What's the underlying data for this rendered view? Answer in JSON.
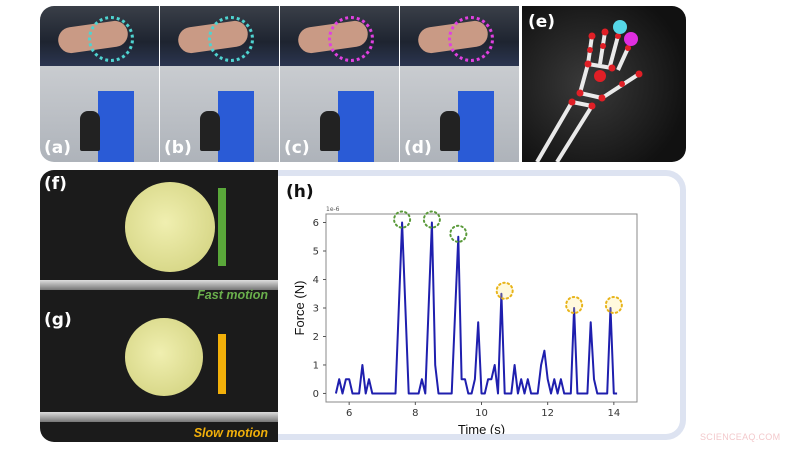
{
  "figure": {
    "panels": {
      "a": {
        "label": "(a)",
        "marker_color": "#4fd3d0"
      },
      "b": {
        "label": "(b)",
        "marker_color": "#4fd3d0"
      },
      "c": {
        "label": "(c)",
        "marker_color": "#e040e0"
      },
      "d": {
        "label": "(d)",
        "marker_color": "#e040e0"
      },
      "e": {
        "label": "(e)",
        "markers": [
          "#55d6e6",
          "#e02ee0",
          "#e01f26"
        ]
      },
      "f": {
        "label": "(f)",
        "caption": "Fast motion",
        "arrow_color": "#5aa83a"
      },
      "g": {
        "label": "(g)",
        "caption": "Slow motion",
        "arrow_color": "#f2b00a"
      },
      "h": {
        "label": "(h)"
      }
    },
    "watermark": "SCIENCEAQ.COM"
  },
  "chart_data": {
    "type": "line",
    "title": "",
    "panel_label": "(h)",
    "xlabel": "Time (s)",
    "ylabel": "Force (N)",
    "y_scale_note": "1e-6",
    "xlim": [
      5.3,
      14.7
    ],
    "ylim": [
      -0.3,
      6.3
    ],
    "xticks": [
      6,
      8,
      10,
      12,
      14
    ],
    "yticks": [
      0,
      1,
      2,
      3,
      4,
      5,
      6
    ],
    "grid": false,
    "line_color": "#1f1fae",
    "series": [
      {
        "name": "Force",
        "x": [
          5.6,
          5.7,
          5.8,
          5.9,
          6.0,
          6.1,
          6.2,
          6.3,
          6.4,
          6.5,
          6.6,
          6.7,
          7.0,
          7.2,
          7.4,
          7.6,
          7.8,
          8.0,
          8.1,
          8.2,
          8.3,
          8.5,
          8.6,
          8.7,
          8.8,
          9.0,
          9.1,
          9.3,
          9.4,
          9.5,
          9.6,
          9.7,
          9.8,
          9.9,
          10.0,
          10.1,
          10.2,
          10.3,
          10.4,
          10.5,
          10.6,
          10.7,
          10.8,
          10.9,
          11.0,
          11.1,
          11.2,
          11.3,
          11.4,
          11.5,
          11.6,
          11.7,
          11.8,
          11.9,
          12.0,
          12.1,
          12.2,
          12.3,
          12.4,
          12.5,
          12.6,
          12.7,
          12.8,
          12.9,
          13.0,
          13.1,
          13.2,
          13.3,
          13.4,
          13.5,
          13.6,
          13.7,
          13.8,
          13.9,
          14.0,
          14.1
        ],
        "y": [
          0,
          0.5,
          0,
          0.5,
          0.5,
          0,
          0,
          0,
          1,
          0,
          0.5,
          0,
          0,
          0,
          0,
          6,
          0,
          0,
          0,
          0.5,
          0,
          6,
          1,
          0,
          0,
          0,
          0,
          5.5,
          0.5,
          0.5,
          0,
          0,
          0.5,
          2.5,
          0,
          0,
          0.5,
          0.5,
          1,
          0,
          3.5,
          0,
          0,
          0,
          1,
          0,
          0.5,
          0,
          0.5,
          0,
          0,
          0,
          1,
          1.5,
          0.5,
          0,
          0.5,
          0,
          0.5,
          0,
          0,
          0,
          3,
          0,
          0,
          0,
          0,
          2.5,
          0.5,
          0,
          0,
          0,
          0,
          3,
          0,
          0
        ]
      }
    ],
    "annotations": [
      {
        "type": "dotted-circle",
        "x": 7.6,
        "y": 6.0,
        "color": "#5a9a3a",
        "group": "fast"
      },
      {
        "type": "dotted-circle",
        "x": 8.5,
        "y": 6.0,
        "color": "#5a9a3a",
        "group": "fast"
      },
      {
        "type": "dotted-circle",
        "x": 9.3,
        "y": 5.5,
        "color": "#5a9a3a",
        "group": "fast"
      },
      {
        "type": "dotted-circle",
        "x": 10.7,
        "y": 3.5,
        "color": "#e8b41a",
        "group": "slow"
      },
      {
        "type": "dotted-circle",
        "x": 12.8,
        "y": 3.0,
        "color": "#e8b41a",
        "group": "slow"
      },
      {
        "type": "dotted-circle",
        "x": 14.0,
        "y": 3.0,
        "color": "#e8b41a",
        "group": "slow"
      }
    ]
  }
}
